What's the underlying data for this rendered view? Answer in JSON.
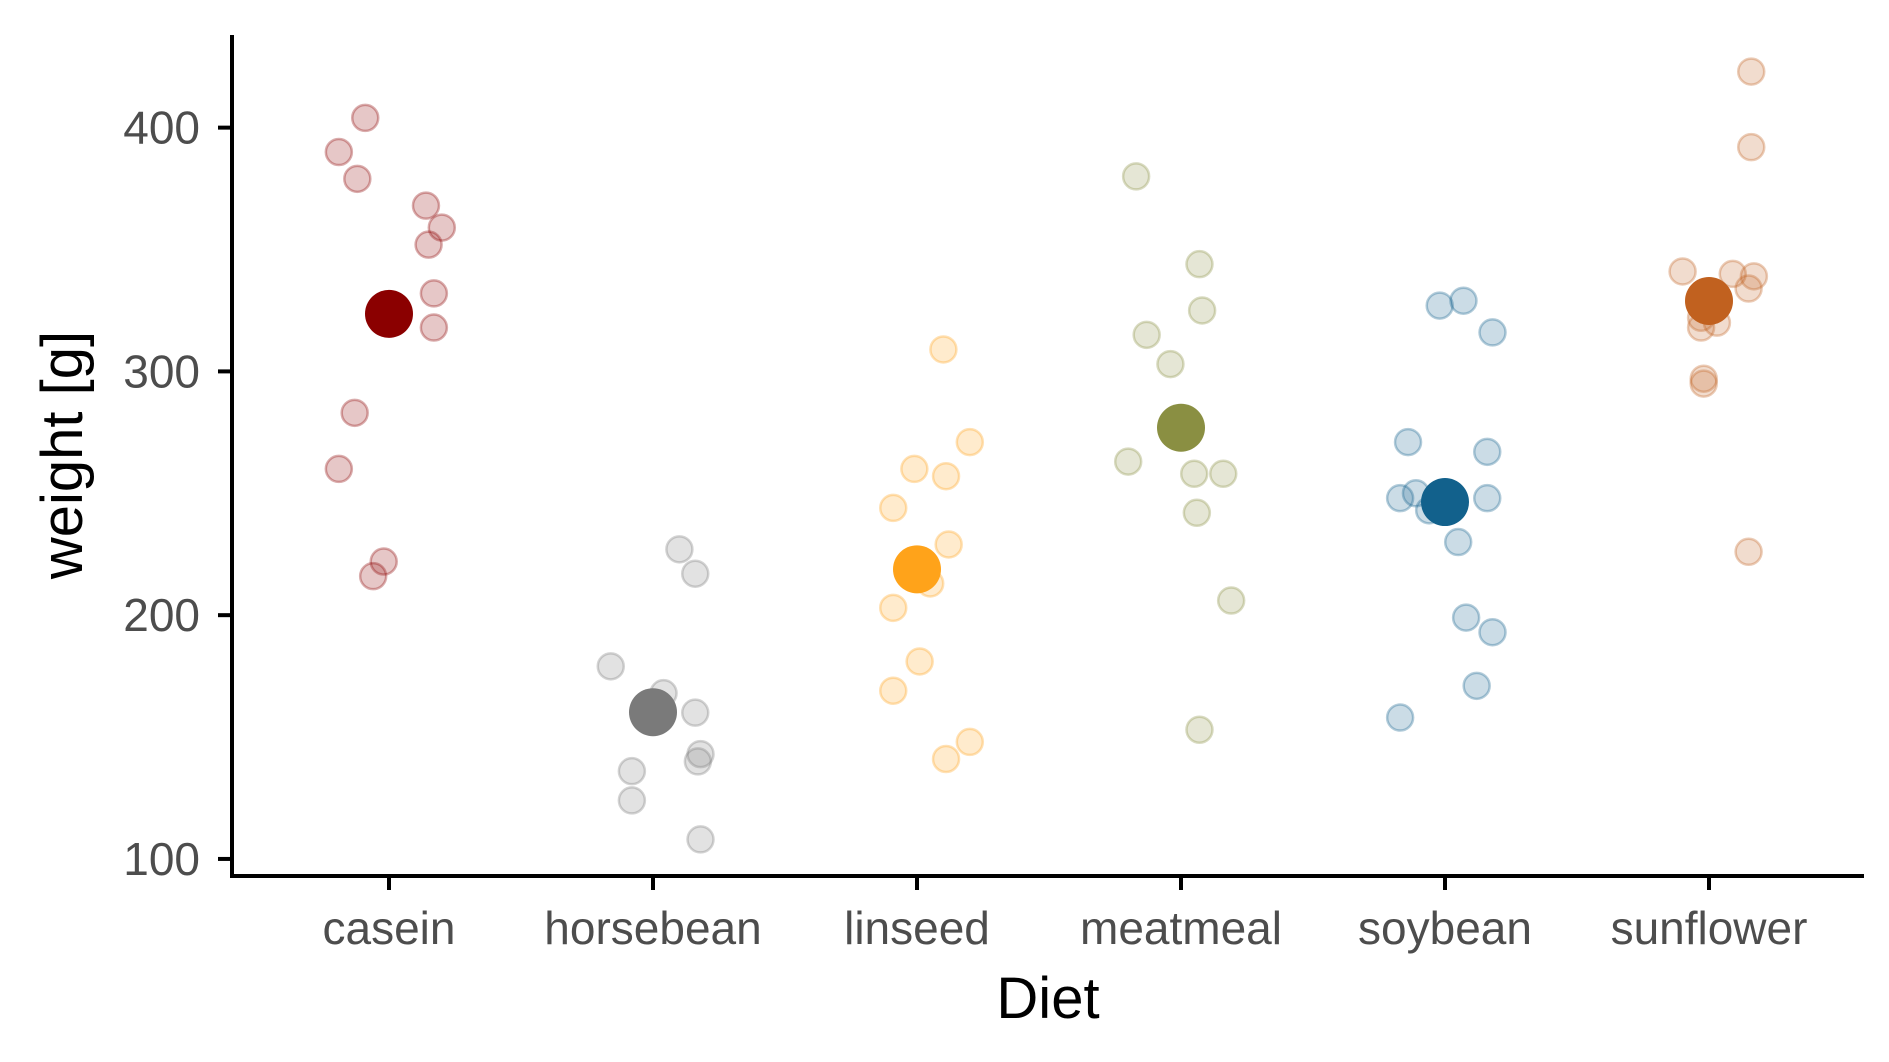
{
  "chart_data": {
    "type": "scatter",
    "xlabel": "Diet",
    "ylabel": "weight [g]",
    "ylim": [
      93,
      438
    ],
    "y_ticks": [
      100,
      200,
      300,
      400
    ],
    "grid": false,
    "legend": "none",
    "categories": [
      "casein",
      "horsebean",
      "linseed",
      "meatmeal",
      "soybean",
      "sunflower"
    ],
    "series": [
      {
        "category": "casein",
        "color": "#8B0000",
        "mean": 323.6,
        "points": [
          {
            "jitter": -0.09,
            "y": 404
          },
          {
            "jitter": -0.19,
            "y": 390
          },
          {
            "jitter": -0.12,
            "y": 379
          },
          {
            "jitter": 0.14,
            "y": 368
          },
          {
            "jitter": 0.2,
            "y": 359
          },
          {
            "jitter": 0.15,
            "y": 352
          },
          {
            "jitter": 0.17,
            "y": 332
          },
          {
            "jitter": 0.17,
            "y": 318
          },
          {
            "jitter": -0.13,
            "y": 283
          },
          {
            "jitter": -0.19,
            "y": 260
          },
          {
            "jitter": -0.02,
            "y": 222
          },
          {
            "jitter": -0.06,
            "y": 216
          }
        ]
      },
      {
        "category": "horsebean",
        "color": "#7A7A7A",
        "mean": 160.2,
        "points": [
          {
            "jitter": 0.1,
            "y": 227
          },
          {
            "jitter": 0.16,
            "y": 217
          },
          {
            "jitter": -0.16,
            "y": 179
          },
          {
            "jitter": 0.04,
            "y": 168
          },
          {
            "jitter": 0.16,
            "y": 160
          },
          {
            "jitter": 0.18,
            "y": 143
          },
          {
            "jitter": 0.17,
            "y": 140
          },
          {
            "jitter": -0.08,
            "y": 136
          },
          {
            "jitter": -0.08,
            "y": 124
          },
          {
            "jitter": 0.18,
            "y": 108
          }
        ]
      },
      {
        "category": "linseed",
        "color": "#FFA31A",
        "mean": 218.8,
        "points": [
          {
            "jitter": 0.1,
            "y": 309
          },
          {
            "jitter": 0.2,
            "y": 271
          },
          {
            "jitter": -0.01,
            "y": 260
          },
          {
            "jitter": 0.11,
            "y": 257
          },
          {
            "jitter": -0.09,
            "y": 244
          },
          {
            "jitter": 0.12,
            "y": 229
          },
          {
            "jitter": 0.05,
            "y": 213
          },
          {
            "jitter": -0.09,
            "y": 203
          },
          {
            "jitter": 0.01,
            "y": 181
          },
          {
            "jitter": -0.09,
            "y": 169
          },
          {
            "jitter": 0.2,
            "y": 148
          },
          {
            "jitter": 0.11,
            "y": 141
          }
        ]
      },
      {
        "category": "meatmeal",
        "color": "#8A8F42",
        "mean": 276.9,
        "points": [
          {
            "jitter": -0.17,
            "y": 380
          },
          {
            "jitter": 0.07,
            "y": 344
          },
          {
            "jitter": 0.08,
            "y": 325
          },
          {
            "jitter": -0.13,
            "y": 315
          },
          {
            "jitter": -0.04,
            "y": 303
          },
          {
            "jitter": -0.2,
            "y": 263
          },
          {
            "jitter": 0.05,
            "y": 258
          },
          {
            "jitter": 0.16,
            "y": 258
          },
          {
            "jitter": 0.06,
            "y": 242
          },
          {
            "jitter": 0.19,
            "y": 206
          },
          {
            "jitter": 0.07,
            "y": 153
          }
        ]
      },
      {
        "category": "soybean",
        "color": "#12618C",
        "mean": 246.4,
        "points": [
          {
            "jitter": -0.02,
            "y": 327
          },
          {
            "jitter": 0.07,
            "y": 329
          },
          {
            "jitter": 0.18,
            "y": 316
          },
          {
            "jitter": -0.14,
            "y": 271
          },
          {
            "jitter": 0.16,
            "y": 267
          },
          {
            "jitter": -0.17,
            "y": 248
          },
          {
            "jitter": -0.11,
            "y": 250
          },
          {
            "jitter": -0.06,
            "y": 243
          },
          {
            "jitter": 0.16,
            "y": 248
          },
          {
            "jitter": 0.05,
            "y": 230
          },
          {
            "jitter": 0.08,
            "y": 199
          },
          {
            "jitter": 0.18,
            "y": 193
          },
          {
            "jitter": 0.12,
            "y": 171
          },
          {
            "jitter": -0.17,
            "y": 158
          }
        ]
      },
      {
        "category": "sunflower",
        "color": "#C1611F",
        "mean": 328.9,
        "points": [
          {
            "jitter": 0.16,
            "y": 423
          },
          {
            "jitter": 0.16,
            "y": 392
          },
          {
            "jitter": -0.1,
            "y": 341
          },
          {
            "jitter": 0.09,
            "y": 340
          },
          {
            "jitter": 0.17,
            "y": 339
          },
          {
            "jitter": 0.15,
            "y": 334
          },
          {
            "jitter": -0.03,
            "y": 322
          },
          {
            "jitter": -0.03,
            "y": 318
          },
          {
            "jitter": 0.03,
            "y": 320
          },
          {
            "jitter": -0.02,
            "y": 297
          },
          {
            "jitter": -0.02,
            "y": 295
          },
          {
            "jitter": 0.15,
            "y": 226
          }
        ]
      }
    ]
  }
}
